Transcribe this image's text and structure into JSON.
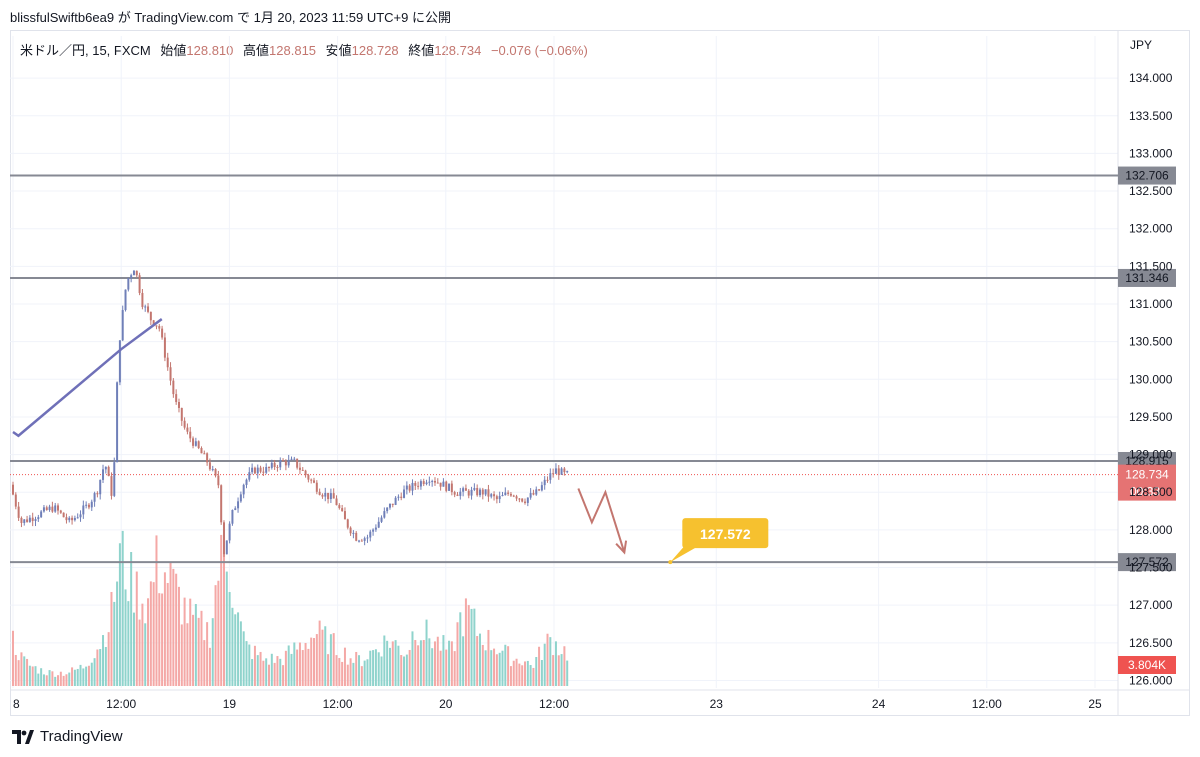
{
  "header": {
    "author": "blissfulSwiftb6ea9",
    "ga": "が",
    "site": "TradingView.com",
    "de": "で",
    "date": "1月 20, 2023 11:59 UTC+9",
    "suffix": "に公開"
  },
  "legend": {
    "symbol": "米ドル／円, 15, FXCM",
    "open_label": "始値",
    "open": "128.810",
    "high_label": "高値",
    "high": "128.815",
    "low_label": "安値",
    "low": "128.728",
    "close_label": "終値",
    "close": "128.734",
    "change": "−0.076 (−0.06%)"
  },
  "axis_unit": "JPY",
  "footer": {
    "brand": "TradingView"
  },
  "colors": {
    "up": "#26a69a",
    "down": "#ef5350",
    "candle_up": "#6f7fb8",
    "candle_down": "#c3766f",
    "level_line": "#868993",
    "trend_line": "#6f70b8",
    "callout": "#f6c12f",
    "arrow": "#c3766f",
    "vol_up": "#8fd3cc",
    "vol_down": "#f4a8a6",
    "last_price_tag": "#e57373",
    "vol_tag": "#ef5350"
  },
  "chart_data": {
    "type": "candlestick",
    "ylim": [
      125.9,
      134.4
    ],
    "y_ticks": [
      "134.000",
      "133.500",
      "133.000",
      "132.500",
      "132.000",
      "131.500",
      "131.000",
      "130.500",
      "130.000",
      "129.500",
      "129.000",
      "128.500",
      "128.000",
      "127.500",
      "127.000",
      "126.500",
      "126.000"
    ],
    "x_ticks": [
      {
        "label": "8",
        "t": 0.0
      },
      {
        "label": "12:00",
        "t": 4.0
      },
      {
        "label": "19",
        "t": 8.0
      },
      {
        "label": "12:00",
        "t": 12.0
      },
      {
        "label": "20",
        "t": 16.0
      },
      {
        "label": "12:00",
        "t": 20.0
      },
      {
        "label": "23",
        "t": 26.0
      },
      {
        "label": "24",
        "t": 32.0
      },
      {
        "label": "12:00",
        "t": 36.0
      },
      {
        "label": "25",
        "t": 40.0
      }
    ],
    "price_path": [
      [
        0.0,
        128.6
      ],
      [
        0.4,
        128.1
      ],
      [
        1.0,
        128.2
      ],
      [
        1.6,
        128.3
      ],
      [
        2.2,
        128.1
      ],
      [
        2.8,
        128.3
      ],
      [
        3.2,
        128.5
      ],
      [
        3.5,
        128.9
      ],
      [
        3.8,
        128.4
      ],
      [
        4.0,
        130.4
      ],
      [
        4.3,
        131.3
      ],
      [
        4.6,
        131.5
      ],
      [
        4.9,
        131.0
      ],
      [
        5.2,
        130.8
      ],
      [
        5.5,
        130.7
      ],
      [
        5.8,
        130.2
      ],
      [
        6.1,
        129.7
      ],
      [
        6.5,
        129.3
      ],
      [
        6.9,
        129.1
      ],
      [
        7.3,
        128.9
      ],
      [
        7.7,
        128.6
      ],
      [
        7.9,
        127.7
      ],
      [
        8.2,
        128.2
      ],
      [
        8.6,
        128.6
      ],
      [
        9.0,
        128.8
      ],
      [
        9.5,
        128.8
      ],
      [
        10.0,
        128.9
      ],
      [
        10.5,
        128.9
      ],
      [
        11.0,
        128.7
      ],
      [
        11.5,
        128.5
      ],
      [
        12.0,
        128.4
      ],
      [
        12.4,
        128.1
      ],
      [
        12.8,
        127.9
      ],
      [
        13.2,
        127.9
      ],
      [
        13.6,
        128.1
      ],
      [
        14.0,
        128.3
      ],
      [
        14.5,
        128.5
      ],
      [
        15.0,
        128.6
      ],
      [
        15.5,
        128.7
      ],
      [
        16.0,
        128.6
      ],
      [
        16.5,
        128.5
      ],
      [
        17.0,
        128.5
      ],
      [
        17.5,
        128.5
      ],
      [
        18.0,
        128.4
      ],
      [
        18.5,
        128.5
      ],
      [
        19.0,
        128.4
      ],
      [
        19.5,
        128.5
      ],
      [
        19.9,
        128.7
      ],
      [
        20.2,
        128.8
      ],
      [
        20.5,
        128.73
      ]
    ],
    "volume_profile": [
      0.35,
      0.2,
      0.15,
      0.12,
      0.1,
      0.1,
      0.1,
      0.12,
      0.15,
      0.25,
      0.35,
      0.55,
      1.0,
      0.8,
      0.7,
      0.6,
      0.9,
      0.85,
      0.75,
      0.6,
      0.5,
      0.45,
      0.4,
      0.9,
      1.0,
      0.55,
      0.3,
      0.25,
      0.2,
      0.2,
      0.2,
      0.25,
      0.3,
      0.35,
      0.4,
      0.35,
      0.3,
      0.25,
      0.2,
      0.2,
      0.25,
      0.3,
      0.35,
      0.3,
      0.25,
      0.45,
      0.4,
      0.35,
      0.3,
      0.25,
      0.5,
      0.55,
      0.4,
      0.35,
      0.3,
      0.25,
      0.2,
      0.2,
      0.15,
      0.25,
      0.35,
      0.3,
      0.25
    ],
    "levels": [
      {
        "price": 132.706,
        "label": "132.706"
      },
      {
        "price": 131.346,
        "label": "131.346"
      },
      {
        "price": 128.915,
        "label": "128.915"
      },
      {
        "price": 127.572,
        "label": "127.572"
      }
    ],
    "last_price": {
      "price": 128.734,
      "label": "128.734",
      "countdown": "00:33"
    },
    "volume_tag": "3.804K",
    "trend_line": [
      [
        0.0,
        129.3
      ],
      [
        0.2,
        129.25
      ],
      [
        4.0,
        130.4
      ],
      [
        5.5,
        130.8
      ]
    ],
    "forecast_arrow": [
      [
        20.9,
        128.55
      ],
      [
        21.4,
        128.1
      ],
      [
        21.9,
        128.5
      ],
      [
        22.6,
        127.7
      ]
    ],
    "target_callout": {
      "label": "127.572",
      "price": 127.572,
      "t": 24.3
    }
  }
}
